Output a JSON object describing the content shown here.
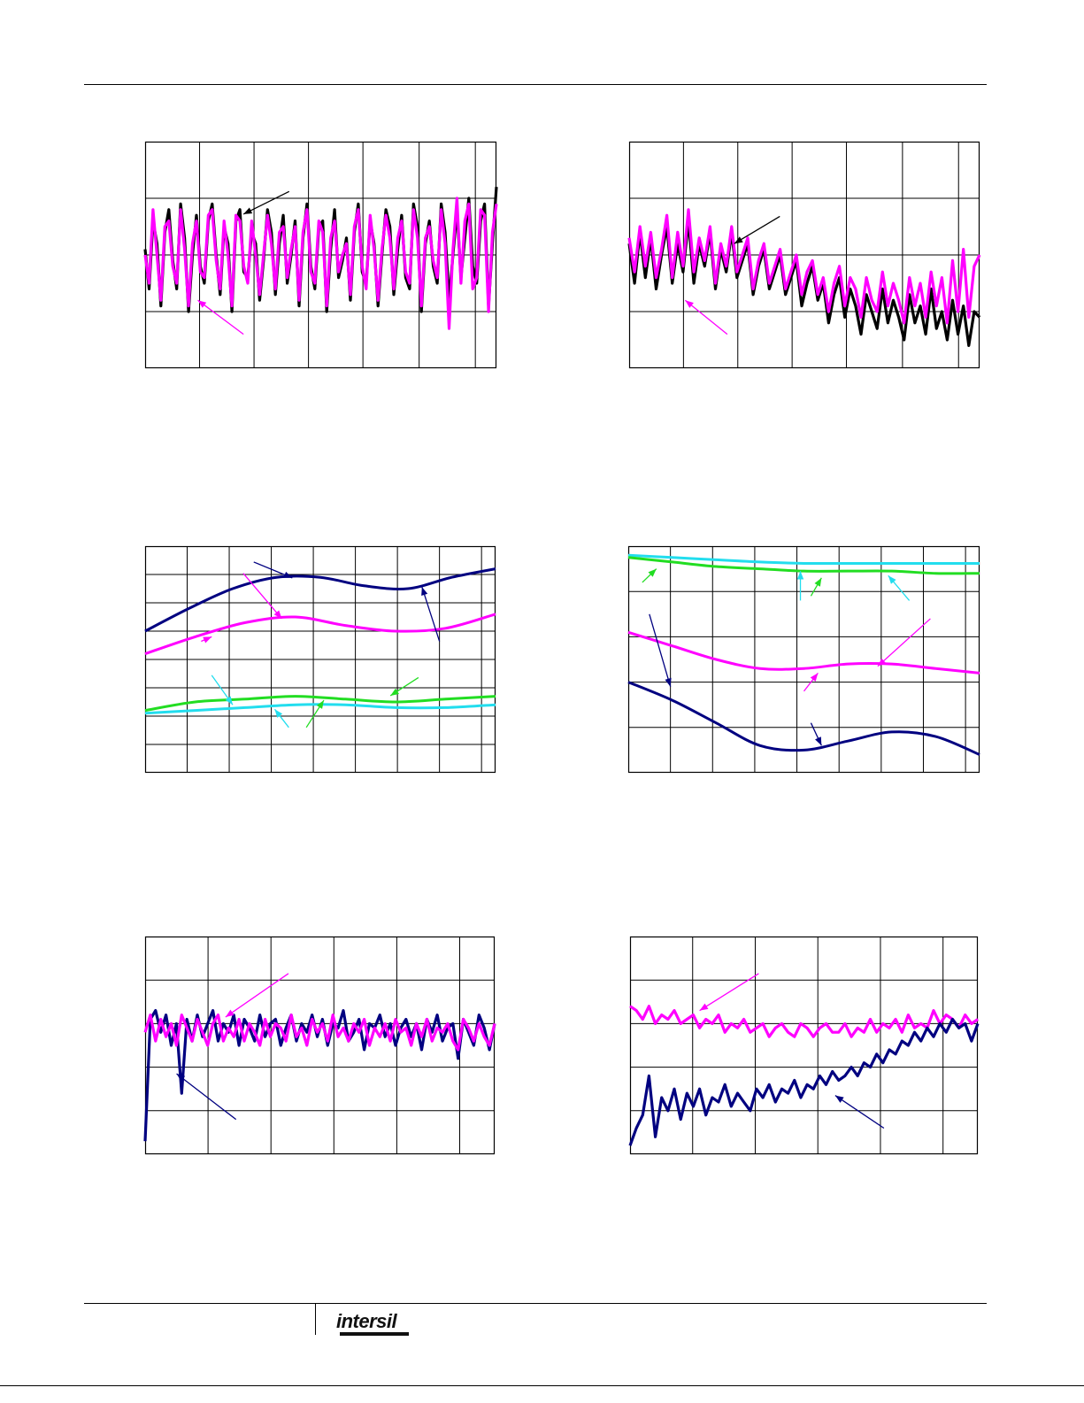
{
  "footer": {
    "logo_text": "intersil"
  },
  "colors": {
    "black": "#000000",
    "magenta": "#ff00ff",
    "navy": "#000080",
    "green": "#22dd22",
    "cyan": "#22ddee"
  },
  "chart_data": [
    {
      "type": "line",
      "ylim": [
        0,
        4
      ],
      "grid": true,
      "series": [
        {
          "color": "#000000",
          "values": [
            2.1,
            1.4,
            2.6,
            2.2,
            1.1,
            2.4,
            2.8,
            1.9,
            1.4,
            2.9,
            2.3,
            1.0,
            2.0,
            2.7,
            1.8,
            1.5,
            2.6,
            2.9,
            2.0,
            1.3,
            2.5,
            2.2,
            1.0,
            2.6,
            2.8,
            1.7,
            1.6,
            2.4,
            2.2,
            1.2,
            1.9,
            2.8,
            2.4,
            1.3,
            2.2,
            2.7,
            1.5,
            2.0,
            2.6,
            1.1,
            2.3,
            2.9,
            1.8,
            1.4,
            2.5,
            2.6,
            1.0,
            2.1,
            2.8,
            1.6,
            1.9,
            2.3,
            1.2,
            2.4,
            2.9,
            1.7,
            1.5,
            2.6,
            2.2,
            1.1,
            2.0,
            2.8,
            2.5,
            1.3,
            2.1,
            2.7,
            1.6,
            1.4,
            2.9,
            2.5,
            1.0,
            2.2,
            2.6,
            1.8,
            1.5,
            2.9,
            2.4,
            1.2,
            2.0,
            2.8,
            1.6,
            2.3,
            3.0,
            1.8,
            1.5,
            2.6,
            2.9,
            1.1,
            2.2,
            3.2
          ]
        },
        {
          "color": "#ff00ff",
          "values": [
            2.0,
            1.5,
            2.8,
            2.0,
            1.2,
            2.5,
            2.6,
            1.8,
            1.5,
            2.8,
            2.1,
            1.1,
            2.2,
            2.6,
            1.7,
            1.6,
            2.7,
            2.8,
            1.9,
            1.4,
            2.6,
            2.0,
            1.1,
            2.7,
            2.6,
            1.8,
            1.5,
            2.6,
            2.0,
            1.3,
            2.0,
            2.7,
            2.2,
            1.4,
            2.4,
            2.5,
            1.6,
            2.1,
            2.5,
            1.2,
            2.4,
            2.8,
            1.7,
            1.5,
            2.6,
            2.4,
            1.1,
            2.3,
            2.6,
            1.7,
            2.0,
            2.2,
            1.3,
            2.5,
            2.8,
            1.8,
            1.4,
            2.7,
            2.1,
            1.2,
            2.1,
            2.7,
            2.3,
            1.4,
            2.3,
            2.6,
            1.7,
            1.5,
            2.8,
            2.3,
            1.1,
            2.3,
            2.5,
            1.9,
            1.6,
            2.8,
            2.2,
            0.7,
            2.1,
            3.0,
            1.5,
            2.6,
            2.9,
            1.4,
            1.6,
            2.8,
            2.7,
            1.0,
            2.4,
            2.9
          ]
        }
      ]
    },
    {
      "type": "line",
      "ylim": [
        0,
        4
      ],
      "grid": true,
      "series": [
        {
          "color": "#000000",
          "values": [
            2.2,
            1.5,
            2.4,
            1.6,
            2.3,
            1.4,
            2.0,
            2.5,
            1.5,
            2.2,
            1.7,
            2.6,
            1.5,
            2.2,
            1.8,
            2.4,
            1.4,
            2.1,
            1.7,
            2.4,
            1.6,
            1.9,
            2.2,
            1.3,
            1.8,
            2.1,
            1.4,
            1.7,
            2.0,
            1.3,
            1.6,
            1.9,
            1.1,
            1.5,
            1.8,
            1.2,
            1.5,
            0.8,
            1.3,
            1.6,
            0.9,
            1.4,
            1.1,
            0.6,
            1.3,
            1.0,
            0.7,
            1.4,
            0.8,
            1.2,
            0.9,
            0.5,
            1.3,
            0.8,
            1.1,
            0.6,
            1.4,
            0.7,
            1.0,
            0.5,
            1.2,
            0.6,
            1.1,
            0.4,
            1.0,
            0.9
          ]
        },
        {
          "color": "#ff00ff",
          "values": [
            2.3,
            1.7,
            2.5,
            1.8,
            2.4,
            1.6,
            2.1,
            2.7,
            1.6,
            2.4,
            1.8,
            2.8,
            1.7,
            2.3,
            1.9,
            2.5,
            1.5,
            2.2,
            1.8,
            2.5,
            1.7,
            2.0,
            2.3,
            1.4,
            1.9,
            2.2,
            1.5,
            1.8,
            2.1,
            1.4,
            1.7,
            2.0,
            1.3,
            1.7,
            1.9,
            1.3,
            1.6,
            1.0,
            1.5,
            1.8,
            1.1,
            1.6,
            1.4,
            0.9,
            1.6,
            1.2,
            1.0,
            1.7,
            1.1,
            1.5,
            1.2,
            0.8,
            1.6,
            1.1,
            1.5,
            0.9,
            1.7,
            1.1,
            1.6,
            0.8,
            1.9,
            1.0,
            2.1,
            0.9,
            1.8,
            2.0
          ]
        }
      ]
    },
    {
      "type": "line",
      "ylim": [
        0,
        8
      ],
      "grid": true,
      "series": [
        {
          "color": "#000080",
          "values": [
            5.0,
            5.8,
            6.5,
            6.9,
            6.9,
            6.6,
            6.5,
            6.9,
            7.2
          ]
        },
        {
          "color": "#ff00ff",
          "values": [
            4.2,
            4.8,
            5.3,
            5.5,
            5.2,
            5.0,
            5.1,
            5.6
          ]
        },
        {
          "color": "#22dd22",
          "values": [
            2.2,
            2.5,
            2.6,
            2.7,
            2.6,
            2.5,
            2.6,
            2.7
          ]
        },
        {
          "color": "#22ddee",
          "values": [
            2.1,
            2.2,
            2.3,
            2.4,
            2.4,
            2.3,
            2.3,
            2.4
          ]
        }
      ]
    },
    {
      "type": "line",
      "ylim": [
        0,
        5
      ],
      "grid": true,
      "series": [
        {
          "color": "#22ddee",
          "values": [
            4.8,
            4.75,
            4.7,
            4.65,
            4.62,
            4.62,
            4.62,
            4.62,
            4.62
          ]
        },
        {
          "color": "#22dd22",
          "values": [
            4.75,
            4.65,
            4.55,
            4.5,
            4.45,
            4.45,
            4.45,
            4.4,
            4.4
          ]
        },
        {
          "color": "#ff00ff",
          "values": [
            3.1,
            2.8,
            2.5,
            2.3,
            2.3,
            2.4,
            2.4,
            2.3,
            2.2
          ]
        },
        {
          "color": "#000080",
          "values": [
            2.0,
            1.6,
            1.1,
            0.6,
            0.5,
            0.7,
            0.9,
            0.8,
            0.4
          ]
        }
      ]
    },
    {
      "type": "line",
      "ylim": [
        0,
        5
      ],
      "grid": true,
      "series": [
        {
          "color": "#000080",
          "values": [
            0.3,
            3.1,
            3.3,
            2.8,
            3.2,
            2.5,
            3.0,
            1.4,
            3.1,
            2.6,
            3.2,
            2.7,
            3.0,
            3.3,
            2.6,
            3.0,
            2.8,
            3.2,
            2.5,
            3.1,
            2.9,
            2.6,
            3.2,
            2.7,
            3.0,
            3.1,
            2.5,
            2.9,
            3.2,
            2.6,
            3.0,
            2.8,
            3.2,
            2.7,
            3.1,
            2.5,
            3.0,
            2.9,
            3.3,
            2.6,
            2.8,
            3.1,
            2.4,
            3.0,
            2.9,
            3.2,
            2.7,
            3.0,
            2.5,
            2.9,
            3.1,
            2.7,
            3.0,
            2.4,
            3.1,
            2.8,
            3.2,
            2.6,
            2.9,
            3.0,
            2.2,
            3.1,
            2.8,
            2.5,
            3.2,
            2.9,
            2.4,
            3.0
          ]
        },
        {
          "color": "#ff00ff",
          "values": [
            2.8,
            3.2,
            2.6,
            3.1,
            2.7,
            3.0,
            2.5,
            3.2,
            2.9,
            2.6,
            3.1,
            2.8,
            2.5,
            3.0,
            3.2,
            2.6,
            2.9,
            2.7,
            3.1,
            2.6,
            3.0,
            2.8,
            2.5,
            3.1,
            2.7,
            3.0,
            2.9,
            2.6,
            3.2,
            2.7,
            2.9,
            2.5,
            3.1,
            2.8,
            3.0,
            2.6,
            3.2,
            2.7,
            2.9,
            2.6,
            3.0,
            2.8,
            3.1,
            2.5,
            2.9,
            2.7,
            3.0,
            2.6,
            3.1,
            2.8,
            2.9,
            2.5,
            3.0,
            2.7,
            3.1,
            2.6,
            2.9,
            2.8,
            3.0,
            2.6,
            2.4,
            3.1,
            2.9,
            2.6,
            3.0,
            2.7,
            2.5,
            3.0
          ]
        }
      ]
    },
    {
      "type": "line",
      "ylim": [
        0,
        5
      ],
      "grid": true,
      "series": [
        {
          "color": "#ff00ff",
          "values": [
            3.4,
            3.3,
            3.1,
            3.4,
            3.0,
            3.2,
            3.1,
            3.3,
            3.0,
            3.1,
            3.2,
            2.9,
            3.1,
            3.0,
            3.2,
            2.8,
            3.0,
            2.9,
            3.1,
            2.8,
            2.9,
            3.0,
            2.7,
            2.9,
            3.0,
            2.8,
            2.7,
            3.0,
            2.9,
            2.7,
            2.9,
            3.0,
            2.8,
            2.8,
            3.0,
            2.7,
            2.9,
            2.8,
            3.1,
            2.8,
            3.0,
            2.9,
            3.1,
            2.8,
            3.2,
            2.9,
            3.0,
            2.9,
            3.3,
            3.0,
            3.2,
            3.1,
            2.9,
            3.2,
            3.0,
            3.1
          ]
        },
        {
          "color": "#000080",
          "values": [
            0.2,
            0.6,
            0.9,
            1.8,
            0.4,
            1.3,
            1.0,
            1.5,
            0.8,
            1.4,
            1.1,
            1.5,
            0.9,
            1.3,
            1.2,
            1.6,
            1.1,
            1.4,
            1.2,
            1.0,
            1.5,
            1.3,
            1.6,
            1.2,
            1.5,
            1.4,
            1.7,
            1.3,
            1.6,
            1.5,
            1.8,
            1.6,
            1.9,
            1.7,
            1.8,
            2.0,
            1.8,
            2.1,
            2.0,
            2.3,
            2.1,
            2.4,
            2.3,
            2.6,
            2.5,
            2.8,
            2.6,
            2.9,
            2.7,
            3.0,
            2.8,
            3.1,
            2.9,
            3.0,
            2.6,
            3.0
          ]
        }
      ]
    }
  ]
}
